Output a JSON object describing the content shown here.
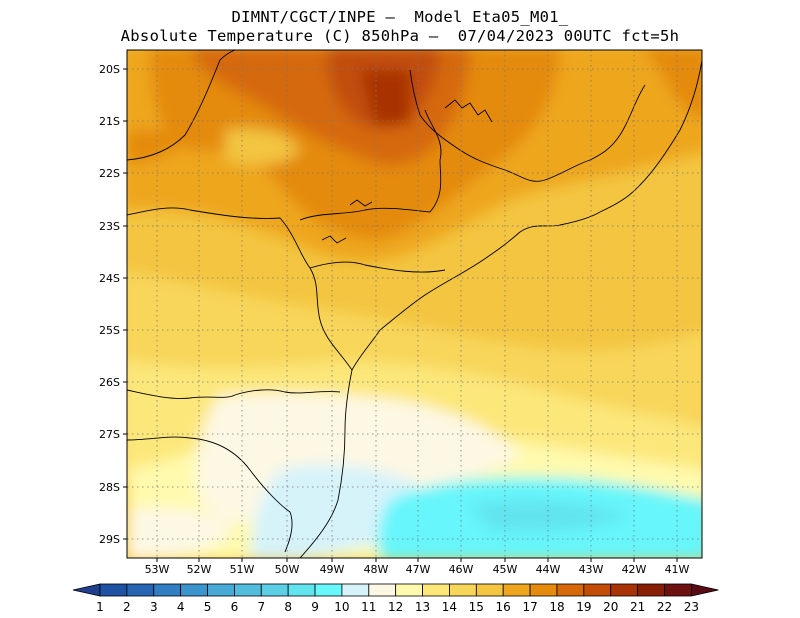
{
  "header": {
    "line1": "DIMNT/CGCT/INPE –  Model Eta05_M01_",
    "line2": "Absolute Temperature (C) 850hPa –  07/04/2023 00UTC fct=5h"
  },
  "map": {
    "lat_labels": [
      "20S",
      "21S",
      "22S",
      "23S",
      "24S",
      "25S",
      "26S",
      "27S",
      "28S",
      "29S"
    ],
    "lon_labels": [
      "53W",
      "52W",
      "51W",
      "50W",
      "49W",
      "48W",
      "47W",
      "46W",
      "45W",
      "44W",
      "43W",
      "42W",
      "41W"
    ]
  },
  "colorbar": {
    "labels": [
      "1",
      "2",
      "3",
      "4",
      "5",
      "6",
      "7",
      "8",
      "9",
      "10",
      "11",
      "12",
      "13",
      "14",
      "15",
      "16",
      "17",
      "18",
      "19",
      "20",
      "21",
      "22",
      "23"
    ],
    "colors": [
      "#1f3e8c",
      "#1f52a3",
      "#2766b3",
      "#317ec2",
      "#3c94cc",
      "#48a8d6",
      "#52bcdc",
      "#5ccfe6",
      "#62e4ef",
      "#66f6fb",
      "#d6f3fa",
      "#fdf8e3",
      "#fffaad",
      "#fce77a",
      "#f8d65a",
      "#f3c541",
      "#eea61f",
      "#e48a0d",
      "#d5690a",
      "#c24d07",
      "#a83306",
      "#8a1f07",
      "#6e1210",
      "#5a0a14"
    ]
  }
}
